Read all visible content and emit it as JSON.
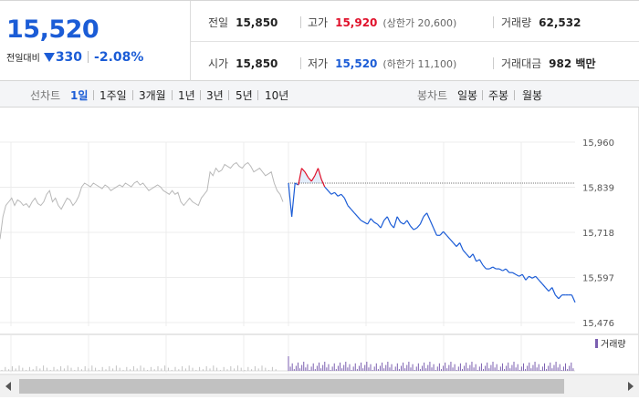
{
  "header": {
    "current_price": "15,520",
    "change_label": "전일대비",
    "change_value": "330",
    "change_pct": "-2.08%",
    "prev_close": {
      "label": "전일",
      "value": "15,850"
    },
    "open": {
      "label": "시가",
      "value": "15,850"
    },
    "high": {
      "label": "고가",
      "value": "15,920",
      "sub": "(상한가 20,600)"
    },
    "low": {
      "label": "저가",
      "value": "15,520",
      "sub": "(하한가 11,100)"
    },
    "volume": {
      "label": "거래량",
      "value": "62,532"
    },
    "amount": {
      "label": "거래대금",
      "value": "982 백만"
    }
  },
  "toolbar": {
    "line_label": "선차트",
    "line_options": [
      "1일",
      "1주일",
      "3개월",
      "1년",
      "3년",
      "5년",
      "10년"
    ],
    "line_selected": "1일",
    "candle_label": "봉차트",
    "candle_options": [
      "일봉",
      "주봉",
      "월봉"
    ]
  },
  "colors": {
    "up": "#e0102a",
    "down": "#1b5cd6",
    "prev_day": "#b8b8b8",
    "fill": "#e4eefb"
  },
  "chart_data": {
    "type": "line",
    "y_ticks": [
      "15,960",
      "15,839",
      "15,718",
      "15,597",
      "15,476"
    ],
    "ylim": [
      15476,
      15960
    ],
    "grid": true,
    "reference_line": 15850,
    "legend": "거래량",
    "series": [
      {
        "values": [
          15700,
          15760,
          15790,
          15800,
          15810,
          15790,
          15805,
          15800,
          15790,
          15795,
          15785,
          15800,
          15810,
          15795,
          15790,
          15800,
          15820,
          15830,
          15800,
          15810,
          15790,
          15780,
          15795,
          15810,
          15805,
          15790,
          15800,
          15815,
          15840,
          15850,
          15845,
          15840,
          15850,
          15845,
          15840,
          15835,
          15845,
          15840,
          15830,
          15835,
          15840,
          15845,
          15840,
          15850,
          15845,
          15840,
          15850,
          15855,
          15845,
          15850,
          15840,
          15830,
          15835,
          15840,
          15845,
          15840,
          15830,
          15825,
          15820,
          15830,
          15820,
          15825,
          15800,
          15790,
          15800,
          15810,
          15800,
          15795,
          15790,
          15810,
          15820,
          15830,
          15880,
          15870,
          15890,
          15880,
          15885,
          15900,
          15895,
          15890,
          15900,
          15905,
          15895,
          15890,
          15900,
          15905,
          15895,
          15880,
          15885,
          15890,
          15880,
          15870,
          15875,
          15880,
          15850,
          15830,
          15820,
          15800
        ]
      },
      {
        "values": [
          15850,
          15760,
          15850,
          15845,
          15890,
          15880,
          15865,
          15855,
          15870,
          15890,
          15860,
          15840,
          15830,
          15820,
          15825,
          15815,
          15820,
          15810,
          15790,
          15780,
          15770,
          15760,
          15750,
          15745,
          15740,
          15755,
          15745,
          15740,
          15730,
          15750,
          15760,
          15740,
          15730,
          15760,
          15745,
          15740,
          15750,
          15735,
          15725,
          15730,
          15740,
          15760,
          15770,
          15750,
          15730,
          15710,
          15710,
          15720,
          15710,
          15700,
          15690,
          15680,
          15690,
          15670,
          15660,
          15650,
          15660,
          15640,
          15645,
          15630,
          15620,
          15620,
          15625,
          15620,
          15620,
          15615,
          15620,
          15610,
          15610,
          15605,
          15600,
          15605,
          15590,
          15600,
          15595,
          15600,
          15590,
          15580,
          15570,
          15560,
          15570,
          15550,
          15540,
          15550,
          15550,
          15550,
          15550,
          15530
        ]
      }
    ]
  }
}
